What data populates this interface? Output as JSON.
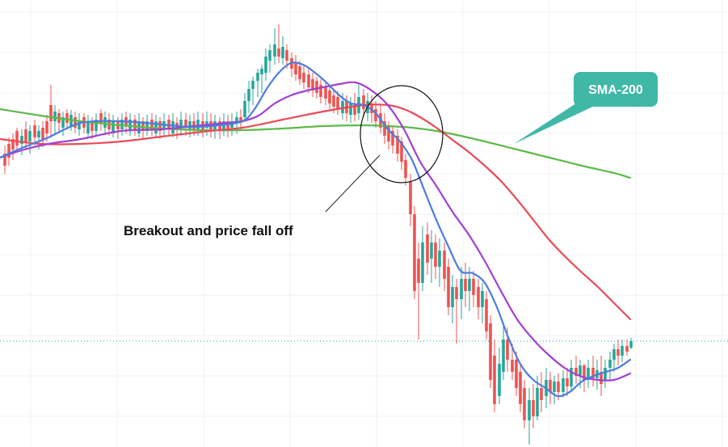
{
  "chart_data": {
    "type": "candlestick",
    "grid": true,
    "legend": "none",
    "colors": {
      "up": "#26a69a",
      "down": "#ef5350",
      "sma_fast": "#4a7de0",
      "sma_mid": "#a23fd2",
      "sma_slow": "#ea4a57",
      "sma_200": "#5cba4a",
      "callout": "#3fb8a8",
      "grid": "#eef0f4",
      "price_line": "#26a69a"
    },
    "annotations": {
      "breakout_label": "Breakout and price fall off",
      "sma200_label": "SMA-200"
    },
    "series": [
      {
        "id": "sma_200",
        "x": [
          0,
          50,
          100,
          150,
          200,
          250,
          300,
          350,
          400,
          450,
          480,
          510,
          540,
          570,
          600,
          640,
          680,
          720,
          760,
          780
        ],
        "values": [
          135,
          143,
          150,
          155,
          159,
          161,
          161,
          159,
          156,
          155,
          156,
          158,
          162,
          168,
          175,
          185,
          195,
          205,
          214,
          220
        ]
      },
      {
        "id": "sma_slow",
        "x": [
          0,
          50,
          100,
          150,
          200,
          250,
          300,
          350,
          400,
          450,
          480,
          500,
          520,
          540,
          560,
          580,
          600,
          620,
          640,
          660,
          680,
          700,
          720,
          740,
          760,
          780
        ],
        "values": [
          172,
          178,
          178,
          175,
          169,
          163,
          158,
          148,
          138,
          130,
          130,
          135,
          145,
          158,
          173,
          188,
          205,
          224,
          247,
          272,
          297,
          318,
          337,
          355,
          375,
          395
        ]
      },
      {
        "id": "sma_mid",
        "x": [
          0,
          30,
          60,
          100,
          150,
          200,
          250,
          280,
          300,
          320,
          340,
          360,
          380,
          400,
          420,
          440,
          460,
          480,
          500,
          520,
          540,
          560,
          580,
          600,
          620,
          640,
          660,
          680,
          700,
          720,
          740,
          760,
          780
        ],
        "values": [
          195,
          185,
          178,
          172,
          162,
          160,
          155,
          152,
          150,
          143,
          128,
          118,
          112,
          108,
          104,
          102,
          112,
          130,
          160,
          200,
          230,
          262,
          290,
          323,
          360,
          395,
          420,
          440,
          456,
          466,
          470,
          470,
          462
        ]
      },
      {
        "id": "sma_fast",
        "x": [
          0,
          20,
          40,
          60,
          80,
          100,
          120,
          150,
          180,
          210,
          240,
          270,
          300,
          315,
          330,
          345,
          360,
          375,
          390,
          405,
          420,
          435,
          450,
          465,
          480,
          495,
          510,
          525,
          540,
          555,
          570,
          585,
          600,
          615,
          630,
          645,
          660,
          675,
          690,
          705,
          720,
          735,
          750,
          765,
          780
        ],
        "values": [
          195,
          186,
          178,
          170,
          160,
          152,
          150,
          150,
          152,
          155,
          157,
          155,
          150,
          135,
          110,
          90,
          78,
          80,
          90,
          103,
          118,
          128,
          130,
          140,
          160,
          175,
          198,
          235,
          272,
          305,
          335,
          338,
          350,
          380,
          420,
          452,
          470,
          480,
          490,
          485,
          472,
          465,
          460,
          455,
          445
        ]
      }
    ],
    "candles": [
      [
        6,
        180,
        215,
        190,
        205
      ],
      [
        11,
        170,
        205,
        178,
        195
      ],
      [
        16,
        165,
        198,
        172,
        185
      ],
      [
        21,
        158,
        188,
        162,
        180
      ],
      [
        27,
        160,
        192,
        178,
        168
      ],
      [
        32,
        150,
        185,
        160,
        175
      ],
      [
        37,
        155,
        190,
        175,
        162
      ],
      [
        43,
        148,
        180,
        155,
        170
      ],
      [
        48,
        155,
        185,
        170,
        162
      ],
      [
        53,
        150,
        182,
        158,
        172
      ],
      [
        58,
        142,
        175,
        150,
        165
      ],
      [
        63,
        105,
        170,
        130,
        150
      ],
      [
        68,
        130,
        165,
        150,
        138
      ],
      [
        73,
        135,
        162,
        140,
        152
      ],
      [
        78,
        138,
        168,
        158,
        145
      ],
      [
        83,
        135,
        160,
        140,
        152
      ],
      [
        88,
        136,
        162,
        156,
        142
      ],
      [
        93,
        138,
        165,
        145,
        158
      ],
      [
        98,
        140,
        168,
        160,
        150
      ],
      [
        104,
        140,
        165,
        145,
        158
      ],
      [
        109,
        142,
        170,
        165,
        150
      ],
      [
        114,
        145,
        172,
        150,
        162
      ],
      [
        119,
        140,
        168,
        162,
        148
      ],
      [
        125,
        135,
        162,
        140,
        152
      ],
      [
        130,
        138,
        165,
        158,
        145
      ],
      [
        135,
        140,
        168,
        148,
        160
      ],
      [
        140,
        142,
        170,
        165,
        150
      ],
      [
        146,
        145,
        172,
        150,
        160
      ],
      [
        151,
        140,
        168,
        160,
        148
      ],
      [
        156,
        138,
        165,
        145,
        155
      ],
      [
        161,
        140,
        168,
        160,
        148
      ],
      [
        167,
        142,
        168,
        148,
        160
      ],
      [
        172,
        140,
        170,
        165,
        150
      ],
      [
        177,
        145,
        172,
        150,
        162
      ],
      [
        182,
        142,
        168,
        162,
        150
      ],
      [
        188,
        140,
        168,
        148,
        160
      ],
      [
        193,
        142,
        170,
        165,
        150
      ],
      [
        198,
        145,
        172,
        150,
        162
      ],
      [
        203,
        140,
        168,
        160,
        150
      ],
      [
        209,
        142,
        168,
        148,
        160
      ],
      [
        214,
        140,
        170,
        165,
        150
      ],
      [
        219,
        145,
        172,
        152,
        160
      ],
      [
        224,
        138,
        168,
        158,
        148
      ],
      [
        230,
        140,
        168,
        148,
        158
      ],
      [
        235,
        142,
        170,
        160,
        150
      ],
      [
        240,
        140,
        168,
        150,
        160
      ],
      [
        245,
        138,
        168,
        160,
        148
      ],
      [
        251,
        140,
        170,
        150,
        160
      ],
      [
        256,
        138,
        168,
        158,
        150
      ],
      [
        261,
        140,
        170,
        150,
        160
      ],
      [
        266,
        142,
        172,
        160,
        150
      ],
      [
        272,
        145,
        172,
        150,
        162
      ],
      [
        277,
        140,
        168,
        162,
        150
      ],
      [
        282,
        142,
        170,
        150,
        160
      ],
      [
        287,
        140,
        168,
        158,
        150
      ],
      [
        293,
        138,
        165,
        152,
        145
      ],
      [
        298,
        135,
        160,
        145,
        152
      ],
      [
        303,
        115,
        150,
        145,
        125
      ],
      [
        308,
        100,
        140,
        125,
        110
      ],
      [
        313,
        95,
        130,
        110,
        100
      ],
      [
        319,
        85,
        120,
        100,
        90
      ],
      [
        324,
        80,
        115,
        92,
        85
      ],
      [
        329,
        60,
        100,
        90,
        70
      ],
      [
        334,
        55,
        90,
        75,
        62
      ],
      [
        340,
        35,
        80,
        70,
        55
      ],
      [
        345,
        30,
        78,
        60,
        70
      ],
      [
        350,
        45,
        80,
        72,
        58
      ],
      [
        355,
        55,
        85,
        62,
        75
      ],
      [
        361,
        65,
        95,
        72,
        85
      ],
      [
        366,
        68,
        100,
        78,
        92
      ],
      [
        371,
        75,
        105,
        82,
        98
      ],
      [
        376,
        80,
        110,
        90,
        102
      ],
      [
        382,
        85,
        115,
        92,
        108
      ],
      [
        387,
        90,
        120,
        98,
        112
      ],
      [
        392,
        95,
        122,
        100,
        115
      ],
      [
        397,
        98,
        128,
        105,
        120
      ],
      [
        403,
        100,
        130,
        108,
        122
      ],
      [
        408,
        105,
        135,
        112,
        128
      ],
      [
        413,
        110,
        140,
        118,
        132
      ],
      [
        418,
        112,
        142,
        120,
        135
      ],
      [
        424,
        115,
        148,
        140,
        125
      ],
      [
        429,
        118,
        150,
        125,
        140
      ],
      [
        434,
        120,
        152,
        142,
        128
      ],
      [
        439,
        115,
        150,
        130,
        142
      ],
      [
        444,
        105,
        148,
        140,
        120
      ],
      [
        450,
        110,
        145,
        118,
        135
      ],
      [
        455,
        115,
        150,
        140,
        125
      ],
      [
        460,
        118,
        152,
        128,
        140
      ],
      [
        465,
        125,
        158,
        135,
        150
      ],
      [
        471,
        130,
        165,
        140,
        158
      ],
      [
        476,
        140,
        178,
        150,
        168
      ],
      [
        481,
        150,
        185,
        155,
        175
      ],
      [
        486,
        155,
        190,
        162,
        180
      ],
      [
        492,
        160,
        200,
        168,
        190
      ],
      [
        497,
        170,
        210,
        175,
        200
      ],
      [
        502,
        190,
        230,
        198,
        220
      ],
      [
        508,
        215,
        280,
        225,
        265
      ],
      [
        513,
        255,
        370,
        265,
        360
      ],
      [
        518,
        300,
        420,
        320,
        350
      ],
      [
        523,
        280,
        360,
        350,
        300
      ],
      [
        529,
        275,
        340,
        290,
        325
      ],
      [
        534,
        285,
        350,
        320,
        300
      ],
      [
        539,
        290,
        345,
        300,
        330
      ],
      [
        544,
        295,
        355,
        330,
        310
      ],
      [
        550,
        300,
        360,
        310,
        345
      ],
      [
        555,
        320,
        390,
        330,
        380
      ],
      [
        560,
        340,
        400,
        380,
        355
      ],
      [
        565,
        345,
        425,
        355,
        370
      ],
      [
        571,
        330,
        395,
        370,
        345
      ],
      [
        576,
        325,
        380,
        345,
        360
      ],
      [
        581,
        330,
        385,
        360,
        345
      ],
      [
        586,
        335,
        380,
        345,
        365
      ],
      [
        592,
        345,
        395,
        355,
        380
      ],
      [
        597,
        350,
        400,
        380,
        360
      ],
      [
        602,
        360,
        420,
        370,
        410
      ],
      [
        607,
        390,
        480,
        400,
        470
      ],
      [
        612,
        420,
        510,
        440,
        500
      ],
      [
        618,
        430,
        500,
        490,
        450
      ],
      [
        623,
        400,
        470,
        460,
        420
      ],
      [
        628,
        405,
        460,
        420,
        445
      ],
      [
        634,
        425,
        470,
        445,
        460
      ],
      [
        639,
        435,
        490,
        445,
        480
      ],
      [
        644,
        450,
        510,
        460,
        500
      ],
      [
        649,
        470,
        530,
        480,
        520
      ],
      [
        655,
        480,
        550,
        520,
        495
      ],
      [
        660,
        475,
        530,
        495,
        515
      ],
      [
        665,
        465,
        520,
        515,
        480
      ],
      [
        670,
        460,
        510,
        480,
        495
      ],
      [
        676,
        455,
        505,
        490,
        470
      ],
      [
        681,
        460,
        500,
        470,
        485
      ],
      [
        686,
        465,
        500,
        485,
        472
      ],
      [
        691,
        462,
        495,
        472,
        485
      ],
      [
        697,
        458,
        492,
        485,
        468
      ],
      [
        702,
        455,
        490,
        468,
        478
      ],
      [
        707,
        445,
        485,
        478,
        455
      ],
      [
        713,
        440,
        475,
        455,
        465
      ],
      [
        718,
        445,
        480,
        465,
        452
      ],
      [
        723,
        450,
        485,
        452,
        470
      ],
      [
        728,
        445,
        480,
        470,
        455
      ],
      [
        734,
        440,
        478,
        455,
        468
      ],
      [
        739,
        445,
        482,
        468,
        458
      ],
      [
        744,
        440,
        490,
        460,
        475
      ],
      [
        749,
        445,
        480,
        470,
        455
      ],
      [
        755,
        435,
        470,
        455,
        445
      ],
      [
        760,
        425,
        460,
        445,
        432
      ],
      [
        765,
        420,
        452,
        432,
        440
      ],
      [
        770,
        420,
        448,
        440,
        428
      ],
      [
        776,
        420,
        440,
        428,
        435
      ],
      [
        781,
        418,
        432,
        430,
        422
      ]
    ]
  }
}
